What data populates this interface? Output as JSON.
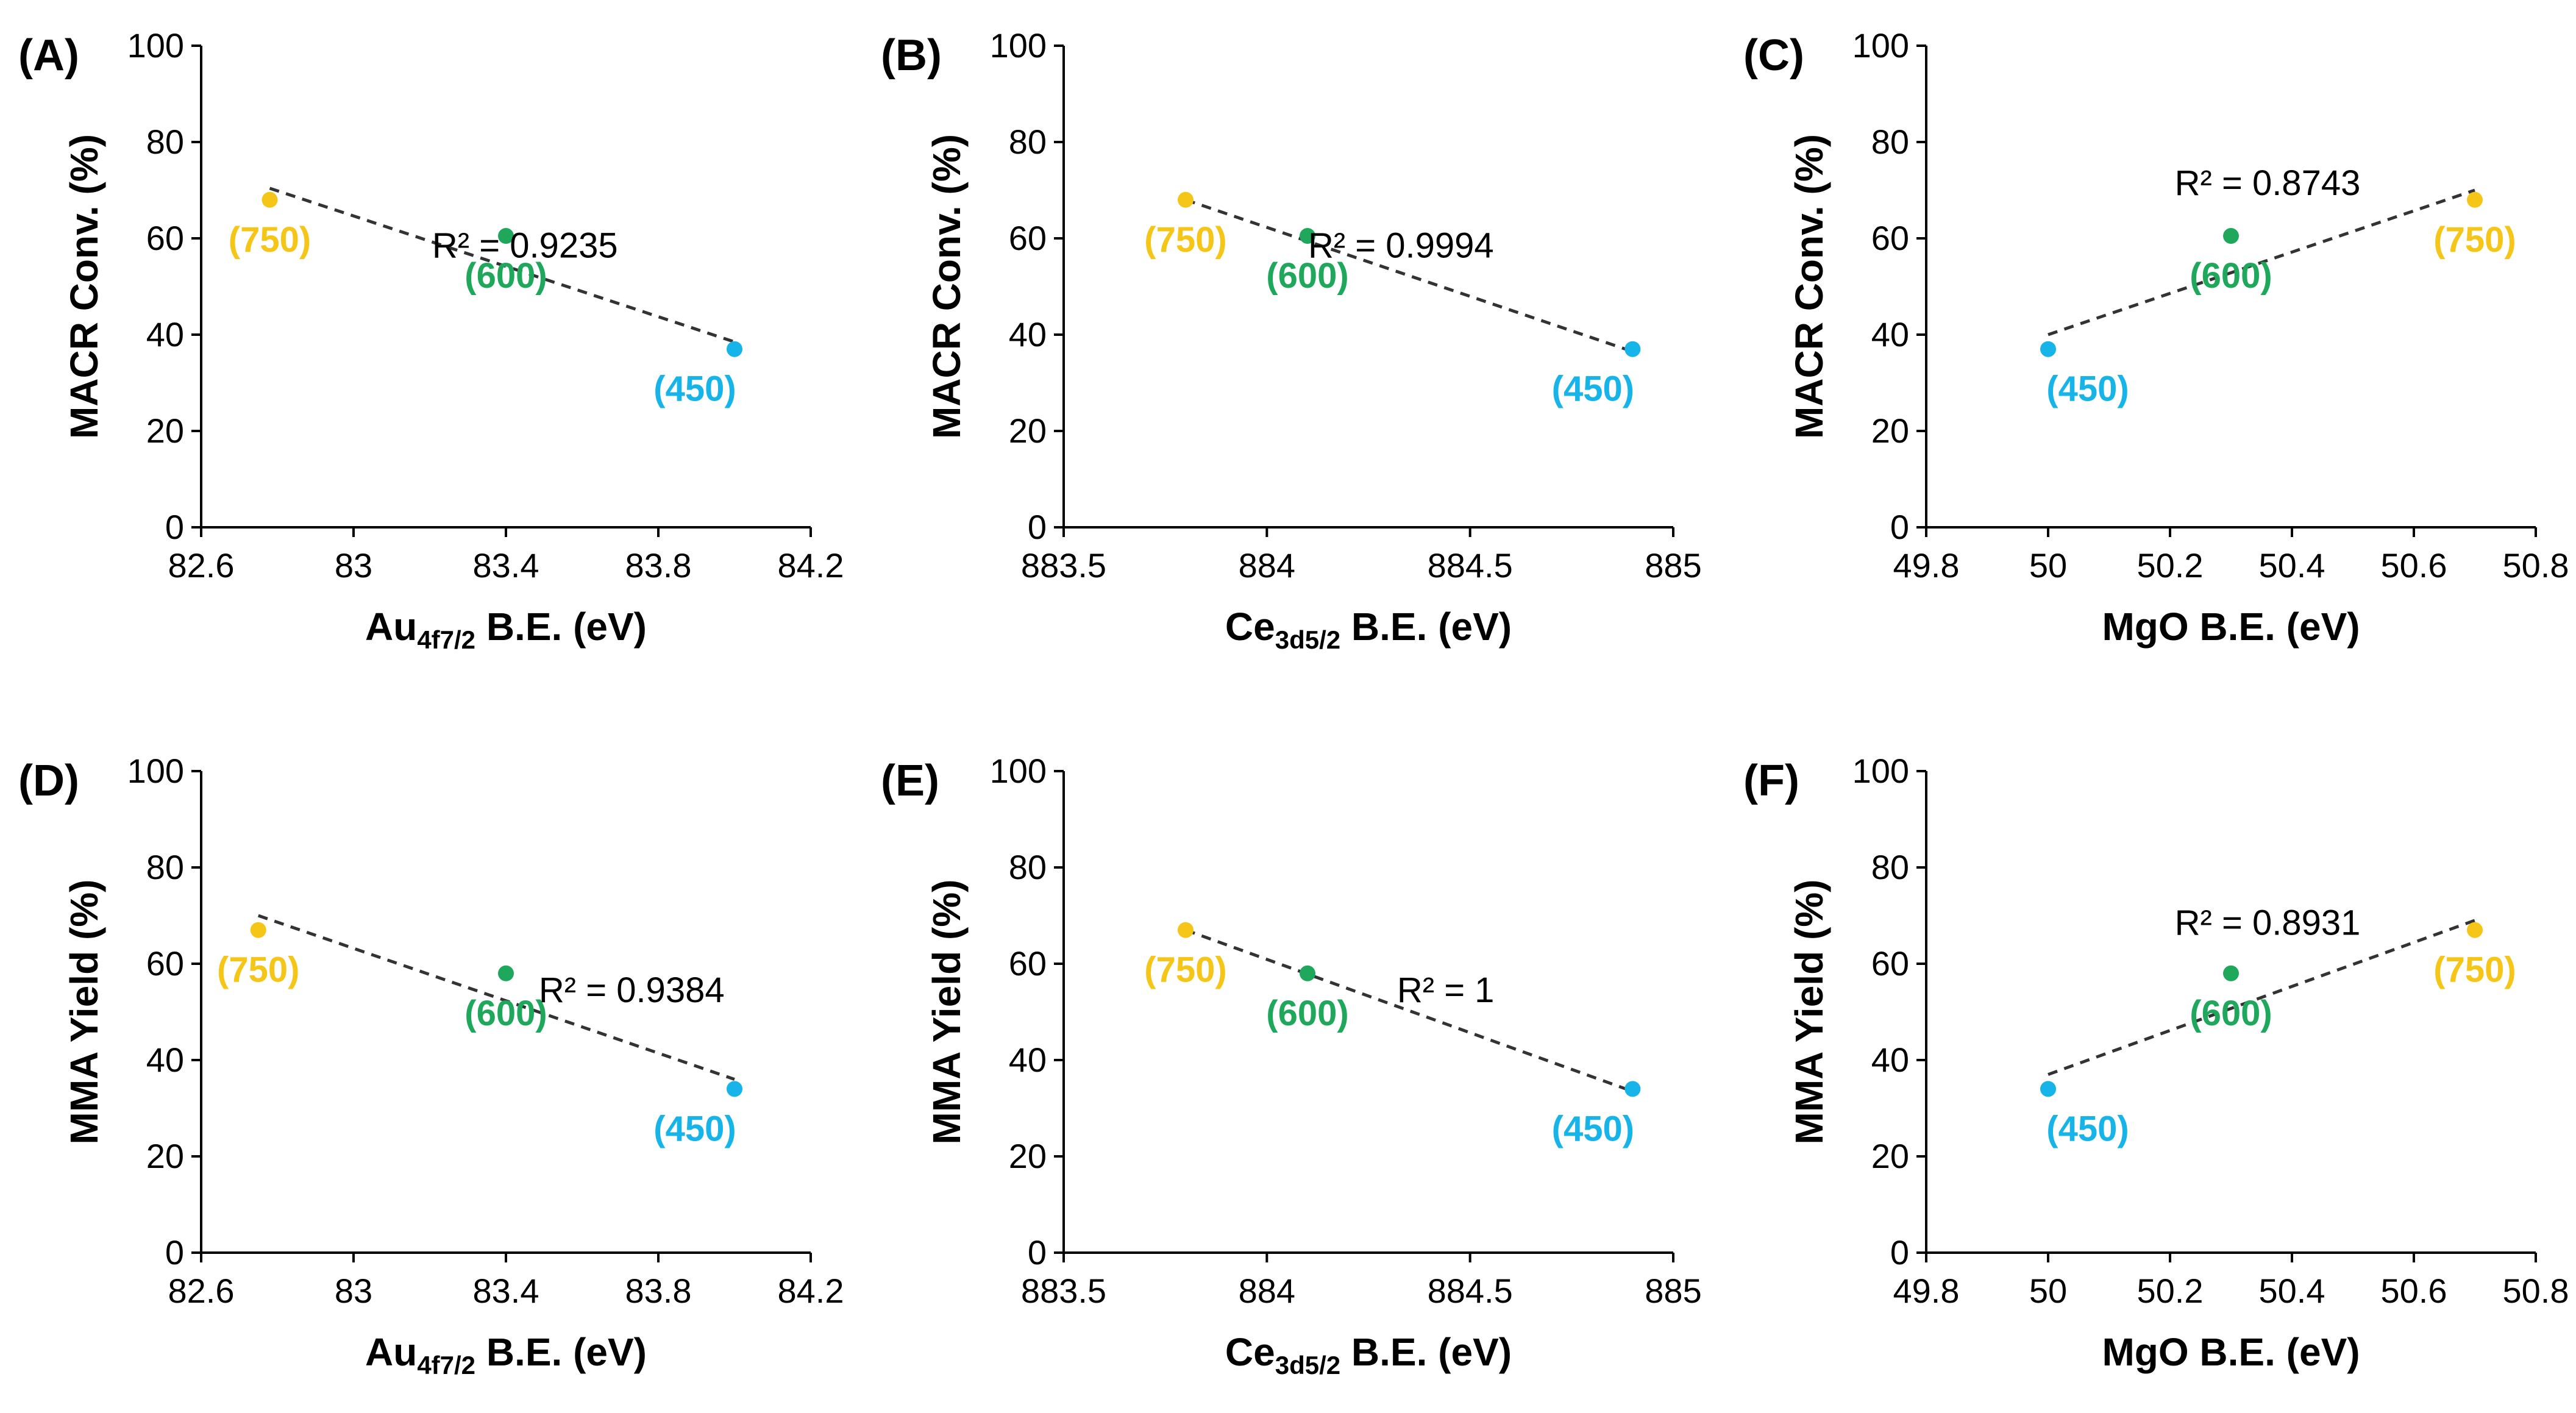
{
  "figure": {
    "colors": {
      "750": "#F5C518",
      "600": "#1FA85C",
      "450": "#16B4E9",
      "trend": "#333333",
      "axis": "#000000"
    }
  },
  "chart_data": [
    {
      "type": "scatter",
      "panel": "(A)",
      "ylabel": "MACR Conv. (%)",
      "xlabel": {
        "main": "Au",
        "sub": "4f7/2",
        "rest": " B.E. (eV)"
      },
      "xlim": [
        82.6,
        84.2
      ],
      "xticks": [
        82.6,
        83,
        83.4,
        83.8,
        84.2
      ],
      "xtick_labels": [
        "82.6",
        "83",
        "83.4",
        "83.8",
        "84.2"
      ],
      "ylim": [
        0,
        100
      ],
      "yticks": [
        0,
        20,
        40,
        60,
        80,
        100
      ],
      "ytick_labels": [
        "0",
        "20",
        "40",
        "60",
        "80",
        "100"
      ],
      "points": [
        {
          "label": "(750)",
          "x": 82.78,
          "y": 68,
          "color": "#F5C518",
          "label_dx": 0,
          "label_dy": 1
        },
        {
          "label": "(600)",
          "x": 83.4,
          "y": 60.5,
          "color": "#1FA85C",
          "label_dx": 0,
          "label_dy": 1
        },
        {
          "label": "(450)",
          "x": 84.0,
          "y": 37,
          "color": "#16B4E9",
          "label_dx": -1,
          "label_dy": 1
        }
      ],
      "trendline": {
        "x": [
          82.78,
          84.0
        ],
        "y": [
          70.4,
          38.5
        ]
      },
      "r2_text": "R² = 0.9235",
      "r2_pos": {
        "x": 83.45,
        "y": 56
      }
    },
    {
      "type": "scatter",
      "panel": "(B)",
      "ylabel": "MACR Conv. (%)",
      "xlabel": {
        "main": "Ce",
        "sub": "3d5/2",
        "rest": " B.E. (eV)"
      },
      "xlim": [
        883.5,
        885
      ],
      "xticks": [
        883.5,
        884,
        884.5,
        885
      ],
      "xtick_labels": [
        "883.5",
        "884",
        "884.5",
        "885"
      ],
      "ylim": [
        0,
        100
      ],
      "yticks": [
        0,
        20,
        40,
        60,
        80,
        100
      ],
      "ytick_labels": [
        "0",
        "20",
        "40",
        "60",
        "80",
        "100"
      ],
      "points": [
        {
          "label": "(750)",
          "x": 883.8,
          "y": 68,
          "color": "#F5C518",
          "label_dx": 0,
          "label_dy": 1
        },
        {
          "label": "(600)",
          "x": 884.1,
          "y": 60.5,
          "color": "#1FA85C",
          "label_dx": 0,
          "label_dy": 1
        },
        {
          "label": "(450)",
          "x": 884.9,
          "y": 37,
          "color": "#16B4E9",
          "label_dx": -1,
          "label_dy": 1
        }
      ],
      "trendline": {
        "x": [
          883.8,
          884.9
        ],
        "y": [
          68,
          36.5
        ]
      },
      "r2_text": "R² = 0.9994",
      "r2_pos": {
        "x": 884.33,
        "y": 56
      }
    },
    {
      "type": "scatter",
      "panel": "(C)",
      "ylabel": "MACR Conv. (%)",
      "xlabel": {
        "main": "MgO B.E. (eV)",
        "sub": "",
        "rest": ""
      },
      "xlim": [
        49.8,
        50.8
      ],
      "xticks": [
        49.8,
        50,
        50.2,
        50.4,
        50.6,
        50.8
      ],
      "xtick_labels": [
        "49.8",
        "50",
        "50.2",
        "50.4",
        "50.6",
        "50.8"
      ],
      "ylim": [
        0,
        100
      ],
      "yticks": [
        0,
        20,
        40,
        60,
        80,
        100
      ],
      "ytick_labels": [
        "0",
        "20",
        "40",
        "60",
        "80",
        "100"
      ],
      "points": [
        {
          "label": "(450)",
          "x": 50.0,
          "y": 37,
          "color": "#16B4E9",
          "label_dx": 1,
          "label_dy": 1
        },
        {
          "label": "(600)",
          "x": 50.3,
          "y": 60.5,
          "color": "#1FA85C",
          "label_dx": 0,
          "label_dy": 1
        },
        {
          "label": "(750)",
          "x": 50.7,
          "y": 68,
          "color": "#F5C518",
          "label_dx": 0,
          "label_dy": 1
        }
      ],
      "trendline": {
        "x": [
          50.0,
          50.7
        ],
        "y": [
          40,
          70
        ]
      },
      "r2_text": "R² = 0.8743",
      "r2_pos": {
        "x": 50.36,
        "y": 69
      }
    },
    {
      "type": "scatter",
      "panel": "(D)",
      "ylabel": "MMA Yield (%)",
      "xlabel": {
        "main": "Au",
        "sub": "4f7/2",
        "rest": " B.E. (eV)"
      },
      "xlim": [
        82.6,
        84.2
      ],
      "xticks": [
        82.6,
        83,
        83.4,
        83.8,
        84.2
      ],
      "xtick_labels": [
        "82.6",
        "83",
        "83.4",
        "83.8",
        "84.2"
      ],
      "ylim": [
        0,
        100
      ],
      "yticks": [
        0,
        20,
        40,
        60,
        80,
        100
      ],
      "ytick_labels": [
        "0",
        "20",
        "40",
        "60",
        "80",
        "100"
      ],
      "points": [
        {
          "label": "(750)",
          "x": 82.75,
          "y": 67,
          "color": "#F5C518",
          "label_dx": 0,
          "label_dy": 1
        },
        {
          "label": "(600)",
          "x": 83.4,
          "y": 58,
          "color": "#1FA85C",
          "label_dx": 0,
          "label_dy": 1
        },
        {
          "label": "(450)",
          "x": 84.0,
          "y": 34,
          "color": "#16B4E9",
          "label_dx": -1,
          "label_dy": 1
        }
      ],
      "trendline": {
        "x": [
          82.75,
          84.0
        ],
        "y": [
          70,
          36
        ]
      },
      "r2_text": "R² = 0.9384",
      "r2_pos": {
        "x": 83.73,
        "y": 52
      }
    },
    {
      "type": "scatter",
      "panel": "(E)",
      "ylabel": "MMA Yield (%)",
      "xlabel": {
        "main": "Ce",
        "sub": "3d5/2",
        "rest": " B.E. (eV)"
      },
      "xlim": [
        883.5,
        885
      ],
      "xticks": [
        883.5,
        884,
        884.5,
        885
      ],
      "xtick_labels": [
        "883.5",
        "884",
        "884.5",
        "885"
      ],
      "ylim": [
        0,
        100
      ],
      "yticks": [
        0,
        20,
        40,
        60,
        80,
        100
      ],
      "ytick_labels": [
        "0",
        "20",
        "40",
        "60",
        "80",
        "100"
      ],
      "points": [
        {
          "label": "(750)",
          "x": 883.8,
          "y": 67,
          "color": "#F5C518",
          "label_dx": 0,
          "label_dy": 1
        },
        {
          "label": "(600)",
          "x": 884.1,
          "y": 58,
          "color": "#1FA85C",
          "label_dx": 0,
          "label_dy": 1
        },
        {
          "label": "(450)",
          "x": 884.9,
          "y": 34,
          "color": "#16B4E9",
          "label_dx": -1,
          "label_dy": 1
        }
      ],
      "trendline": {
        "x": [
          883.8,
          884.9
        ],
        "y": [
          67,
          33.5
        ]
      },
      "r2_text": "R² = 1",
      "r2_pos": {
        "x": 884.44,
        "y": 52
      }
    },
    {
      "type": "scatter",
      "panel": "(F)",
      "ylabel": "MMA Yield (%)",
      "xlabel": {
        "main": "MgO B.E. (eV)",
        "sub": "",
        "rest": ""
      },
      "xlim": [
        49.8,
        50.8
      ],
      "xticks": [
        49.8,
        50,
        50.2,
        50.4,
        50.6,
        50.8
      ],
      "xtick_labels": [
        "49.8",
        "50",
        "50.2",
        "50.4",
        "50.6",
        "50.8"
      ],
      "ylim": [
        0,
        100
      ],
      "yticks": [
        0,
        20,
        40,
        60,
        80,
        100
      ],
      "ytick_labels": [
        "0",
        "20",
        "40",
        "60",
        "80",
        "100"
      ],
      "points": [
        {
          "label": "(450)",
          "x": 50.0,
          "y": 34,
          "color": "#16B4E9",
          "label_dx": 1,
          "label_dy": 1
        },
        {
          "label": "(600)",
          "x": 50.3,
          "y": 58,
          "color": "#1FA85C",
          "label_dx": 0,
          "label_dy": 1
        },
        {
          "label": "(750)",
          "x": 50.7,
          "y": 67,
          "color": "#F5C518",
          "label_dx": 0,
          "label_dy": 1
        }
      ],
      "trendline": {
        "x": [
          50.0,
          50.7
        ],
        "y": [
          37,
          69
        ]
      },
      "r2_text": "R² = 0.8931",
      "r2_pos": {
        "x": 50.36,
        "y": 66
      }
    }
  ]
}
